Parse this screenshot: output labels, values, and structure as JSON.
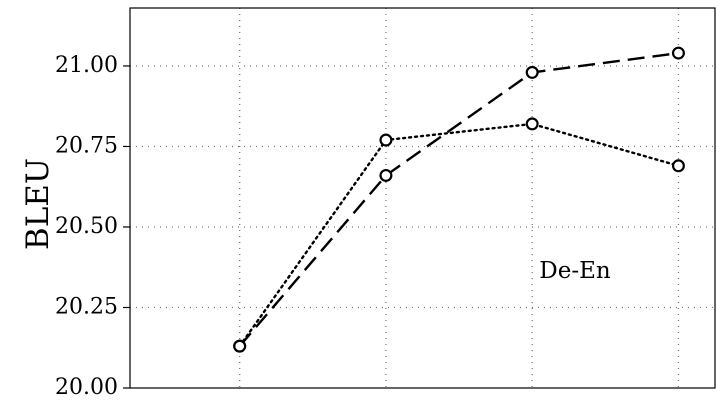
{
  "chart_data": {
    "type": "line",
    "title": "",
    "xlabel": "",
    "ylabel": "BLEU",
    "annotation": "De-En",
    "x": [
      1,
      2,
      3,
      4
    ],
    "xlim": [
      0.25,
      4.25
    ],
    "ylim": [
      20.0,
      21.18
    ],
    "yticks": [
      20.0,
      20.25,
      20.5,
      20.75,
      21.0
    ],
    "ytick_labels": [
      "20.00",
      "20.25",
      "20.50",
      "20.75",
      "21.00"
    ],
    "grid": true,
    "legend": "none",
    "series": [
      {
        "style": "dashed",
        "color": "#000000",
        "marker": "open-circle",
        "values": [
          20.13,
          20.66,
          20.98,
          21.04
        ]
      },
      {
        "style": "dotted",
        "color": "#000000",
        "marker": "open-circle",
        "values": [
          20.13,
          20.77,
          20.82,
          20.69
        ]
      }
    ]
  }
}
